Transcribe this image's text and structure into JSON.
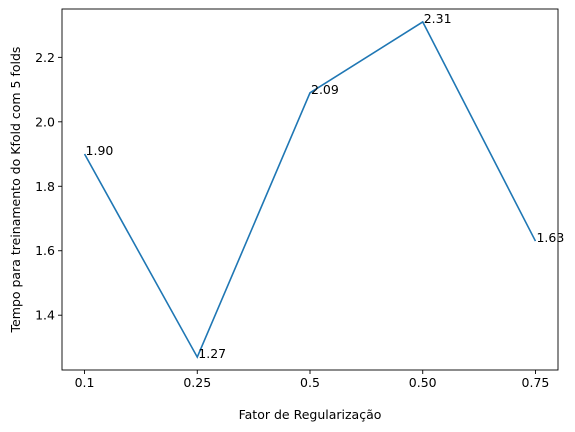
{
  "chart_data": {
    "type": "line",
    "categories": [
      "0.1",
      "0.25",
      "0.5",
      "0.50",
      "0.75"
    ],
    "values": [
      1.9,
      1.27,
      2.09,
      2.31,
      1.63
    ],
    "data_labels": [
      "1.90",
      "1.27",
      "2.09",
      "2.31",
      "1.63"
    ],
    "xlabel": "Fator de Regularização",
    "ylabel": "Tempo para treinamento do Kfold com 5 folds",
    "ylim": [
      1.23,
      2.35
    ],
    "yticks": [
      1.4,
      1.6,
      1.8,
      2.0,
      2.2
    ],
    "ytick_labels": [
      "1.4",
      "1.6",
      "1.8",
      "2.0",
      "2.2"
    ],
    "grid": false,
    "line_color": "#1f77b4"
  }
}
